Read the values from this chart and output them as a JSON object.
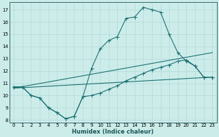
{
  "xlabel": "Humidex (Indice chaleur)",
  "bg_color": "#ccecea",
  "grid_color": "#b8dedd",
  "line_color": "#1a7070",
  "xlim": [
    -0.5,
    23.5
  ],
  "ylim": [
    7.8,
    17.6
  ],
  "yticks": [
    8,
    9,
    10,
    11,
    12,
    13,
    14,
    15,
    16,
    17
  ],
  "xticks": [
    0,
    1,
    2,
    3,
    4,
    5,
    6,
    7,
    8,
    9,
    10,
    11,
    12,
    13,
    14,
    15,
    16,
    17,
    18,
    19,
    20,
    21,
    22,
    23
  ],
  "curve_top_x": [
    0,
    1,
    2,
    3,
    4,
    5,
    6,
    7,
    8,
    9,
    10,
    11,
    12,
    13,
    14,
    15,
    16,
    17,
    18,
    19,
    20,
    21,
    22,
    23
  ],
  "curve_top_y": [
    10.7,
    10.7,
    10.0,
    9.8,
    9.0,
    8.6,
    8.1,
    8.3,
    9.9,
    12.2,
    13.8,
    14.5,
    14.8,
    16.3,
    16.4,
    17.2,
    17.0,
    16.8,
    15.0,
    13.5,
    12.8,
    12.4,
    11.5,
    11.5
  ],
  "curve_bot_x": [
    0,
    1,
    2,
    3,
    4,
    5,
    6,
    7,
    8,
    9,
    10,
    11,
    12,
    13,
    14,
    15,
    16,
    17,
    18,
    19,
    20,
    21,
    22,
    23
  ],
  "curve_bot_y": [
    10.7,
    10.7,
    10.0,
    9.8,
    9.0,
    8.6,
    8.1,
    8.3,
    9.9,
    10.0,
    10.2,
    10.5,
    10.8,
    11.2,
    11.5,
    11.8,
    12.1,
    12.3,
    12.5,
    12.8,
    12.9,
    12.4,
    11.5,
    11.5
  ],
  "line1_x": [
    0,
    23
  ],
  "line1_y": [
    10.6,
    11.5
  ],
  "line2_x": [
    0,
    23
  ],
  "line2_y": [
    10.6,
    13.5
  ]
}
